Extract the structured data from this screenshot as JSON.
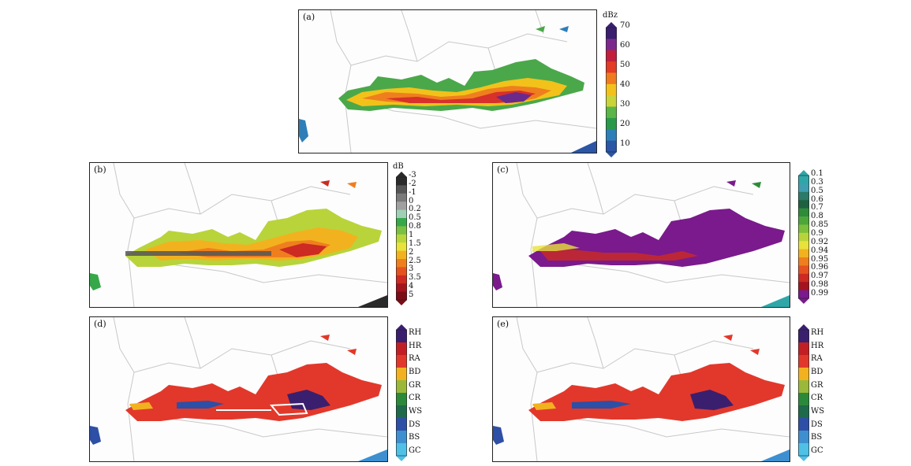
{
  "panels": {
    "a": {
      "label": "(a)"
    },
    "b": {
      "label": "(b)"
    },
    "c": {
      "label": "(c)"
    },
    "d": {
      "label": "(d)"
    },
    "e": {
      "label": "(e)"
    }
  },
  "colorbars": {
    "reflectivity": {
      "unit": "dBz",
      "ticks": [
        "70",
        "60",
        "50",
        "40",
        "30",
        "20",
        "10"
      ],
      "colors": [
        "#3a1f6e",
        "#7b2a8c",
        "#c21f3c",
        "#e23b26",
        "#f07b1e",
        "#f3c21a",
        "#c9d43a",
        "#5bb548",
        "#2a9a4a",
        "#2e7fb8",
        "#2b56a5"
      ]
    },
    "zdr": {
      "unit": "dB",
      "ticks": [
        "-3",
        "-2",
        "-1",
        "0",
        "0.2",
        "0.5",
        "0.8",
        "1",
        "1.5",
        "2",
        "2.5",
        "3",
        "3.5",
        "4",
        "5"
      ],
      "colors": [
        "#2a2a2a",
        "#555555",
        "#7a7a7a",
        "#a0a0a0",
        "#9fd0b5",
        "#36a84a",
        "#7bc043",
        "#b8d63a",
        "#e8e23a",
        "#f2b21f",
        "#ef7f1e",
        "#e5521f",
        "#cc2a22",
        "#a3141e",
        "#7a0d15"
      ]
    },
    "cc": {
      "unit": "",
      "ticks": [
        "0.1",
        "0.3",
        "0.5",
        "0.6",
        "0.7",
        "0.8",
        "0.85",
        "0.9",
        "0.92",
        "0.94",
        "0.95",
        "0.96",
        "0.97",
        "0.98",
        "0.99"
      ],
      "colors": [
        "#2fa7a8",
        "#3f9fb0",
        "#2b7a6a",
        "#1f6040",
        "#2e8b3a",
        "#4ca63a",
        "#7bbf3a",
        "#b8d43a",
        "#e8e23a",
        "#f2b21f",
        "#ef7f1e",
        "#e5521f",
        "#cc2a22",
        "#a3141e",
        "#7a1a8c"
      ]
    },
    "hca_d": {
      "unit": "",
      "ticks": [
        "RH",
        "HR",
        "RA",
        "BD",
        "GR",
        "CR",
        "WS",
        "DS",
        "BS",
        "GC"
      ],
      "colors": [
        "#3a1f6e",
        "#c21f24",
        "#e2382b",
        "#f2b21f",
        "#9ab93a",
        "#2a8a3a",
        "#1e6a4a",
        "#2e4fa6",
        "#3d8fd0",
        "#4fc0e6"
      ]
    },
    "hca_e": {
      "unit": "",
      "ticks": [
        "RH",
        "HR",
        "RA",
        "BD",
        "GR",
        "CR",
        "WS",
        "DS",
        "BS",
        "GC"
      ],
      "colors": [
        "#3a1f6e",
        "#c21f24",
        "#e2382b",
        "#f2b21f",
        "#9ab93a",
        "#2a8a3a",
        "#1e6a4a",
        "#2e4fa6",
        "#3d8fd0",
        "#4fc0e6"
      ]
    }
  }
}
